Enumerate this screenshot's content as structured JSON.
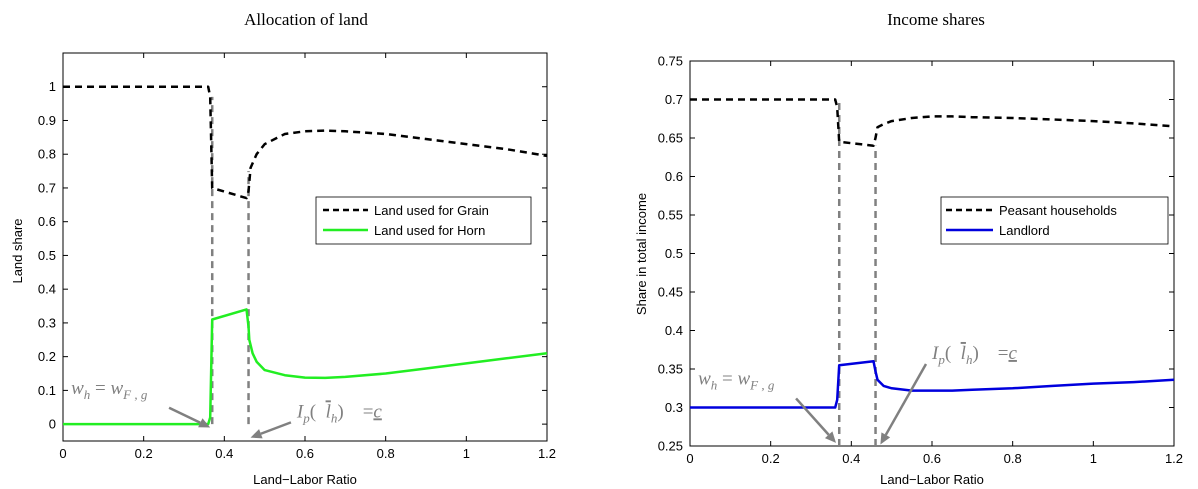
{
  "chart_data": [
    {
      "type": "line",
      "title": "Allocation of land",
      "xlabel": "Land−Labor Ratio",
      "ylabel": "Land share",
      "xlim": [
        0,
        1.2
      ],
      "ylim": [
        -0.05,
        1.1
      ],
      "xticks": [
        0,
        0.2,
        0.4,
        0.6,
        0.8,
        1,
        1.2
      ],
      "xtick_labels": [
        "0",
        "0.2",
        "0.4",
        "0.6",
        "0.8",
        "1",
        "1.2"
      ],
      "yticks": [
        0,
        0.1,
        0.2,
        0.3,
        0.4,
        0.5,
        0.6,
        0.7,
        0.8,
        0.9,
        1
      ],
      "ytick_labels": [
        "0",
        "0.1",
        "0.2",
        "0.3",
        "0.4",
        "0.5",
        "0.6",
        "0.7",
        "0.8",
        "0.9",
        "1"
      ],
      "grid": false,
      "legend_position": "right",
      "series": [
        {
          "name": "Land used for Grain",
          "color": "#000000",
          "style": "dashed",
          "x": [
            0,
            0.36,
            0.365,
            0.37,
            0.455,
            0.46,
            0.465,
            0.48,
            0.5,
            0.55,
            0.6,
            0.65,
            0.7,
            0.8,
            0.9,
            1.0,
            1.1,
            1.2
          ],
          "y": [
            1.0,
            1.0,
            0.97,
            0.7,
            0.67,
            0.69,
            0.76,
            0.8,
            0.83,
            0.86,
            0.868,
            0.87,
            0.868,
            0.86,
            0.845,
            0.83,
            0.815,
            0.795
          ]
        },
        {
          "name": "Land used for Horn",
          "color": "#22ee22",
          "style": "solid",
          "x": [
            0,
            0.36,
            0.365,
            0.37,
            0.455,
            0.46,
            0.462,
            0.47,
            0.48,
            0.5,
            0.55,
            0.6,
            0.65,
            0.7,
            0.8,
            0.9,
            1.0,
            1.1,
            1.2
          ],
          "y": [
            0,
            0,
            0.02,
            0.31,
            0.34,
            0.29,
            0.25,
            0.21,
            0.185,
            0.16,
            0.145,
            0.138,
            0.137,
            0.14,
            0.15,
            0.165,
            0.18,
            0.195,
            0.21
          ]
        }
      ],
      "reference_lines": [
        {
          "x": 0.37,
          "color": "#808080",
          "style": "dashed",
          "y_range": [
            0,
            0.97
          ]
        },
        {
          "x": 0.46,
          "color": "#808080",
          "style": "dashed",
          "y_range": [
            0,
            0.75
          ]
        }
      ],
      "annotations": [
        {
          "label_id": "wh",
          "text_pos": [
            0.02,
            0.09
          ],
          "arrow_to": [
            0.365,
            -0.01
          ]
        },
        {
          "label_id": "ip",
          "text_pos": [
            0.58,
            0.02
          ],
          "arrow_to": [
            0.465,
            -0.04
          ]
        }
      ]
    },
    {
      "type": "line",
      "title": "Income shares",
      "xlabel": "Land−Labor Ratio",
      "ylabel": "Share in total income",
      "xlim": [
        0,
        1.2
      ],
      "ylim": [
        0.25,
        0.75
      ],
      "xticks": [
        0,
        0.2,
        0.4,
        0.6,
        0.8,
        1,
        1.2
      ],
      "xtick_labels": [
        "0",
        "0.2",
        "0.4",
        "0.6",
        "0.8",
        "1",
        "1.2"
      ],
      "yticks": [
        0.25,
        0.3,
        0.35,
        0.4,
        0.45,
        0.5,
        0.55,
        0.6,
        0.65,
        0.7,
        0.75
      ],
      "ytick_labels": [
        "0.25",
        "0.3",
        "0.35",
        "0.4",
        "0.45",
        "0.5",
        "0.55",
        "0.6",
        "0.65",
        "0.7",
        "0.75"
      ],
      "grid": false,
      "legend_position": "right",
      "series": [
        {
          "name": "Peasant households",
          "color": "#000000",
          "style": "dashed",
          "x": [
            0,
            0.36,
            0.365,
            0.37,
            0.455,
            0.46,
            0.465,
            0.48,
            0.5,
            0.55,
            0.6,
            0.65,
            0.7,
            0.8,
            0.9,
            1.0,
            1.1,
            1.2
          ],
          "y": [
            0.7,
            0.7,
            0.69,
            0.645,
            0.64,
            0.65,
            0.664,
            0.668,
            0.672,
            0.676,
            0.678,
            0.678,
            0.677,
            0.676,
            0.674,
            0.672,
            0.669,
            0.665
          ]
        },
        {
          "name": "Landlord",
          "color": "#0000dd",
          "style": "solid",
          "x": [
            0,
            0.36,
            0.365,
            0.37,
            0.455,
            0.46,
            0.465,
            0.48,
            0.5,
            0.55,
            0.6,
            0.65,
            0.7,
            0.8,
            0.9,
            1.0,
            1.1,
            1.2
          ],
          "y": [
            0.3,
            0.3,
            0.31,
            0.355,
            0.36,
            0.347,
            0.336,
            0.328,
            0.325,
            0.322,
            0.322,
            0.322,
            0.323,
            0.325,
            0.328,
            0.331,
            0.333,
            0.336
          ]
        }
      ],
      "reference_lines": [
        {
          "x": 0.37,
          "color": "#808080",
          "style": "dashed",
          "y_range": [
            0.25,
            0.7
          ]
        },
        {
          "x": 0.46,
          "color": "#808080",
          "style": "dashed",
          "y_range": [
            0.25,
            0.64
          ]
        }
      ],
      "annotations": [
        {
          "label_id": "wh",
          "text_pos": [
            0.02,
            0.33
          ],
          "arrow_to": [
            0.362,
            0.254
          ]
        },
        {
          "label_id": "ip",
          "text_pos": [
            0.6,
            0.363
          ],
          "arrow_to": [
            0.472,
            0.252
          ]
        }
      ]
    }
  ],
  "labels": {
    "wh": {
      "main1": "w",
      "sub1": "h",
      "eq": " = ",
      "main2": "w",
      "sub2": "F , g"
    },
    "ip": {
      "main1": "I",
      "sub1": "p",
      "open": "(",
      "barL": "l",
      "sub2": "h",
      "close": ")",
      "eq": "=",
      "c": "c"
    }
  }
}
